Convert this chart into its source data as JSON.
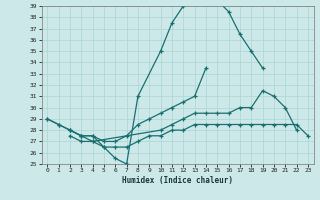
{
  "xlabel": "Humidex (Indice chaleur)",
  "bg_color": "#cce8e8",
  "line_color": "#1a7070",
  "grid_color": "#aad4d4",
  "xlim": [
    -0.5,
    23.5
  ],
  "ylim": [
    25,
    39
  ],
  "yticks": [
    25,
    26,
    27,
    28,
    29,
    30,
    31,
    32,
    33,
    34,
    35,
    36,
    37,
    38,
    39
  ],
  "xticks": [
    0,
    1,
    2,
    3,
    4,
    5,
    6,
    7,
    8,
    9,
    10,
    11,
    12,
    13,
    14,
    15,
    16,
    17,
    18,
    19,
    20,
    21,
    22,
    23
  ],
  "line1_x": [
    0,
    1,
    2,
    3,
    4,
    5,
    6,
    7,
    8,
    10,
    11,
    12,
    13,
    14,
    15,
    16,
    17,
    18,
    19
  ],
  "line1_y": [
    29,
    28.5,
    28,
    27.5,
    27.5,
    26.5,
    25.5,
    25,
    31,
    35,
    37.5,
    39,
    39.5,
    39.5,
    39.5,
    38.5,
    36.5,
    35,
    33.5
  ],
  "line2_x": [
    0,
    1,
    2,
    3,
    4,
    5,
    6,
    7,
    8,
    9,
    10,
    11,
    12,
    13,
    14
  ],
  "line2_y": [
    29,
    28.5,
    28,
    27.5,
    27.5,
    27,
    27,
    27.5,
    28.5,
    29,
    29.5,
    30,
    30.5,
    31,
    33.5
  ],
  "line3_x": [
    2,
    3,
    4,
    10,
    11,
    12,
    13,
    14,
    15,
    16,
    17,
    18,
    19,
    20,
    21,
    22
  ],
  "line3_y": [
    28,
    27.5,
    27,
    28,
    28.5,
    29,
    29.5,
    29.5,
    29.5,
    29.5,
    30,
    30,
    31.5,
    31,
    30,
    28
  ],
  "line4_x": [
    2,
    3,
    4,
    5,
    6,
    7,
    8,
    9,
    10,
    11,
    12,
    13,
    14,
    15,
    16,
    17,
    18,
    19,
    20,
    21,
    22,
    23
  ],
  "line4_y": [
    27.5,
    27,
    27,
    26.5,
    26.5,
    26.5,
    27,
    27.5,
    27.5,
    28,
    28,
    28.5,
    28.5,
    28.5,
    28.5,
    28.5,
    28.5,
    28.5,
    28.5,
    28.5,
    28.5,
    27.5
  ]
}
